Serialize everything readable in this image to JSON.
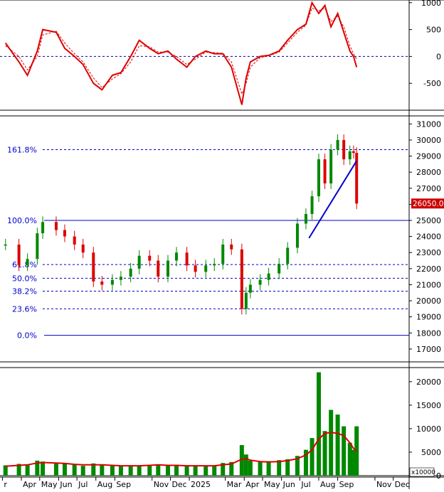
{
  "chart_data": [
    {
      "type": "line",
      "panel": "oscillator",
      "yaxis_ticks": [
        1000,
        500,
        0,
        -500
      ],
      "ylim": [
        -1000,
        1050
      ],
      "zero_line": 0,
      "x": [
        "2024-03-10",
        "2024-04-01",
        "2024-04-15",
        "2024-05-01",
        "2024-05-10",
        "2024-06-01",
        "2024-06-15",
        "2024-07-01",
        "2024-07-15",
        "2024-08-01",
        "2024-08-15",
        "2024-09-01",
        "2024-09-15",
        "2024-10-01",
        "2024-10-15",
        "2024-11-01",
        "2024-11-15",
        "2024-12-01",
        "2024-12-15",
        "2025-01-01",
        "2025-01-15",
        "2025-02-01",
        "2025-02-15",
        "2025-03-01",
        "2025-03-15",
        "2025-04-01",
        "2025-04-08",
        "2025-04-15",
        "2025-05-01",
        "2025-05-15",
        "2025-06-01",
        "2025-06-15",
        "2025-07-01",
        "2025-07-15",
        "2025-07-25",
        "2025-08-05",
        "2025-08-15",
        "2025-08-25",
        "2025-09-05",
        "2025-09-15",
        "2025-09-25",
        "2025-10-01",
        "2025-10-06"
      ],
      "series": [
        {
          "color": "#dd0000",
          "style": "solid",
          "values": [
            250,
            -100,
            -350,
            100,
            500,
            450,
            150,
            0,
            -150,
            -500,
            -620,
            -350,
            -300,
            0,
            300,
            150,
            50,
            100,
            -50,
            -200,
            0,
            100,
            50,
            50,
            -200,
            -900,
            -400,
            -100,
            0,
            20,
            100,
            300,
            500,
            600,
            1000,
            800,
            950,
            550,
            800,
            450,
            100,
            0,
            -200
          ]
        },
        {
          "color": "#dd0000",
          "style": "dashed",
          "values": [
            200,
            0,
            -250,
            0,
            400,
            470,
            250,
            50,
            -100,
            -400,
            -580,
            -420,
            -320,
            -100,
            200,
            180,
            80,
            80,
            0,
            -150,
            -50,
            80,
            70,
            60,
            -100,
            -700,
            -500,
            -200,
            -20,
            10,
            80,
            250,
            450,
            580,
            900,
            850,
            900,
            650,
            750,
            550,
            200,
            50,
            -50
          ]
        }
      ]
    },
    {
      "type": "candlestick",
      "panel": "price",
      "yaxis_ticks": [
        17000,
        18000,
        19000,
        20000,
        21000,
        22000,
        23000,
        24000,
        25000,
        26000,
        27000,
        28000,
        29000,
        30000,
        31000
      ],
      "ylim": [
        16200,
        31500
      ],
      "last_price": "26050.00",
      "last_price_value": 26050,
      "fib_levels": [
        {
          "label": "161.8%",
          "value": 29400,
          "style": "dashed"
        },
        {
          "label": "100.0%",
          "value": 25000,
          "style": "solid"
        },
        {
          "label": "61.8%",
          "value": 22250,
          "style": "dashed"
        },
        {
          "label": "50.0%",
          "value": 21400,
          "style": "dashed"
        },
        {
          "label": "38.2%",
          "value": 20600,
          "style": "dashed"
        },
        {
          "label": "23.6%",
          "value": 19500,
          "style": "dashed"
        },
        {
          "label": "0.0%",
          "value": 17850,
          "style": "solid"
        }
      ],
      "trendline": {
        "color": "#0000cc",
        "x": [
          "2025-07-20",
          "2025-10-06"
        ],
        "y": [
          23900,
          28700
        ]
      },
      "x": [
        "2024-03-10",
        "2024-04-01",
        "2024-04-15",
        "2024-05-01",
        "2024-05-10",
        "2024-06-01",
        "2024-06-15",
        "2024-07-01",
        "2024-07-15",
        "2024-08-01",
        "2024-08-15",
        "2024-09-01",
        "2024-09-15",
        "2024-10-01",
        "2024-10-15",
        "2024-11-01",
        "2024-11-15",
        "2024-12-01",
        "2024-12-15",
        "2025-01-01",
        "2025-01-15",
        "2025-02-01",
        "2025-02-15",
        "2025-03-01",
        "2025-03-15",
        "2025-04-01",
        "2025-04-08",
        "2025-04-15",
        "2025-05-01",
        "2025-05-15",
        "2025-06-01",
        "2025-06-15",
        "2025-07-01",
        "2025-07-15",
        "2025-07-25",
        "2025-08-05",
        "2025-08-15",
        "2025-08-25",
        "2025-09-05",
        "2025-09-15",
        "2025-09-25",
        "2025-10-01",
        "2025-10-06"
      ],
      "close": [
        23500,
        22200,
        22600,
        24200,
        24900,
        24400,
        24000,
        23500,
        23000,
        21200,
        21000,
        21300,
        21500,
        22000,
        22800,
        22500,
        21500,
        22500,
        23000,
        22200,
        21800,
        22200,
        22300,
        23500,
        23200,
        19500,
        20500,
        21000,
        21300,
        21700,
        22300,
        23300,
        24800,
        25400,
        26500,
        28800,
        27300,
        29400,
        30000,
        28800,
        29300,
        29200,
        26050
      ]
    },
    {
      "type": "bar",
      "panel": "volume",
      "unit_label": "x10000",
      "yaxis_ticks": [
        0,
        5000,
        10000,
        15000,
        20000
      ],
      "ylim": [
        0,
        23000
      ],
      "x": [
        "2024-03-10",
        "2024-04-01",
        "2024-04-15",
        "2024-05-01",
        "2024-05-10",
        "2024-06-01",
        "2024-06-15",
        "2024-07-01",
        "2024-07-15",
        "2024-08-01",
        "2024-08-15",
        "2024-09-01",
        "2024-09-15",
        "2024-10-01",
        "2024-10-15",
        "2024-11-01",
        "2024-11-15",
        "2024-12-01",
        "2024-12-15",
        "2025-01-01",
        "2025-01-15",
        "2025-02-01",
        "2025-02-15",
        "2025-03-01",
        "2025-03-15",
        "2025-04-01",
        "2025-04-08",
        "2025-04-15",
        "2025-05-01",
        "2025-05-15",
        "2025-06-01",
        "2025-06-15",
        "2025-07-01",
        "2025-07-15",
        "2025-07-25",
        "2025-08-05",
        "2025-08-15",
        "2025-08-25",
        "2025-09-05",
        "2025-09-15",
        "2025-09-25",
        "2025-10-01",
        "2025-10-06"
      ],
      "values": [
        2200,
        2500,
        2400,
        3200,
        3000,
        2800,
        2500,
        2300,
        2100,
        2600,
        2300,
        2100,
        2000,
        2200,
        2100,
        2300,
        2400,
        2100,
        2300,
        2000,
        2100,
        2000,
        2200,
        2700,
        2900,
        6500,
        4500,
        3200,
        3000,
        3100,
        3300,
        3500,
        4200,
        5500,
        8000,
        22000,
        9500,
        14000,
        13000,
        10500,
        7000,
        5500,
        10500
      ],
      "average": [
        2000,
        2200,
        2300,
        2700,
        2800,
        2700,
        2600,
        2400,
        2300,
        2300,
        2300,
        2200,
        2100,
        2100,
        2100,
        2200,
        2300,
        2200,
        2200,
        2100,
        2100,
        2100,
        2100,
        2300,
        2500,
        3500,
        3600,
        3300,
        3000,
        2900,
        3000,
        3200,
        3600,
        4400,
        5500,
        7800,
        9000,
        9200,
        9000,
        8500,
        7000,
        5800,
        5200
      ],
      "colors": {
        "bars": "#008800",
        "average": "#dd0000"
      }
    }
  ],
  "x_axis": {
    "labels": [
      "r",
      "Apr",
      "May",
      "Jun",
      "Jul",
      "Aug",
      "Sep",
      "Nov",
      "Dec",
      "2025",
      "Mar",
      "Apr",
      "May",
      "Jun",
      "Jul",
      "Aug",
      "Sep",
      "Nov",
      "Dec"
    ],
    "dates": [
      "2024-03-05",
      "2024-04-05",
      "2024-05-05",
      "2024-06-05",
      "2024-07-05",
      "2024-08-05",
      "2024-09-05",
      "2024-11-05",
      "2024-12-05",
      "2025-01-05",
      "2025-03-05",
      "2025-04-05",
      "2025-05-05",
      "2025-06-05",
      "2025-07-05",
      "2025-08-05",
      "2025-09-05",
      "2025-11-05",
      "2025-12-05"
    ],
    "range": [
      "2024-03-01",
      "2025-12-31"
    ]
  },
  "colors": {
    "up": "#008800",
    "down": "#dd0000",
    "fib": "#0000cc",
    "trend": "#0000cc",
    "osc": "#dd0000",
    "price_tag_bg": "#cc0000",
    "price_tag_text": "#ffffff"
  }
}
